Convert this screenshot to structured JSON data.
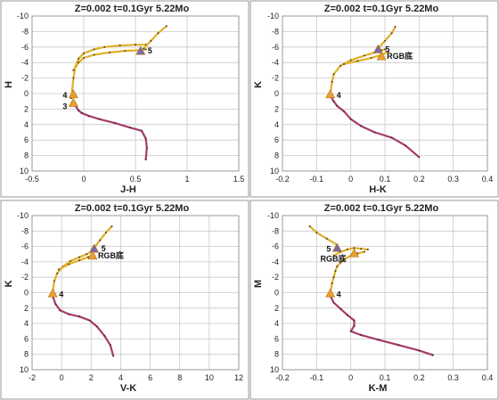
{
  "chart_data": [
    {
      "type": "line",
      "title": "Z=0.002  t=0.1Gyr 5.22Mo",
      "xlabel": "J-H",
      "ylabel": "H",
      "xlim": [
        -0.5,
        1.5
      ],
      "ylim": [
        10,
        -10
      ],
      "xticks": [
        "-0.5",
        "0",
        "0.5",
        "1",
        "1.5"
      ],
      "yticks": [
        "-10",
        "-8",
        "-6",
        "-4",
        "-2",
        "0",
        "2",
        "4",
        "6",
        "8",
        "10"
      ],
      "grid": true,
      "series": [
        {
          "color": "#a83a6a",
          "x": [
            0.6,
            0.61,
            0.6,
            0.56,
            0.45,
            0.3,
            0.15,
            0.05,
            -0.02,
            -0.05,
            -0.1
          ],
          "y": [
            8.5,
            7,
            5.8,
            4.8,
            4.4,
            3.8,
            3.3,
            2.9,
            2.5,
            2.2,
            1.2
          ]
        },
        {
          "color": "#e0b02a",
          "x": [
            -0.12,
            -0.1,
            -0.08,
            -0.05,
            0,
            0.1,
            0.2,
            0.35,
            0.5,
            0.6
          ],
          "y": [
            0.6,
            -2,
            -3.5,
            -4.5,
            -5.2,
            -5.7,
            -6,
            -6.2,
            -6.3,
            -6.3
          ]
        },
        {
          "color": "#e0b02a",
          "x": [
            -0.1,
            -0.05,
            0,
            0.1,
            0.25,
            0.4,
            0.55,
            0.6
          ],
          "y": [
            -3,
            -4,
            -4.6,
            -5,
            -5.3,
            -5.5,
            -5.6,
            -5.7
          ]
        },
        {
          "color": "#e0b02a",
          "x": [
            0.58,
            0.65,
            0.72,
            0.8
          ],
          "y": [
            -5.8,
            -6.8,
            -7.8,
            -8.7
          ]
        }
      ],
      "markers": [
        {
          "label": "5",
          "x": 0.55,
          "y": -5.5,
          "color": "#7a6aa8"
        },
        {
          "label": "4",
          "x": -0.1,
          "y": 0.1,
          "color": "#e8a030"
        },
        {
          "label": "3",
          "x": -0.1,
          "y": 1.2,
          "color": "#e8a030"
        }
      ]
    },
    {
      "type": "line",
      "title": "Z=0.002  t=0.1Gyr 5.22Mo",
      "xlabel": "H-K",
      "ylabel": "K",
      "xlim": [
        -0.2,
        0.4
      ],
      "ylim": [
        10,
        -10
      ],
      "xticks": [
        "-0.2",
        "-0.1",
        "0",
        "0.1",
        "0.2",
        "0.3",
        "0.4"
      ],
      "yticks": [
        "-10",
        "-8",
        "-6",
        "-4",
        "-2",
        "0",
        "2",
        "4",
        "6",
        "8",
        "10"
      ],
      "grid": true,
      "series": [
        {
          "color": "#a83a6a",
          "x": [
            -0.06,
            -0.05,
            -0.04,
            -0.02,
            0,
            0.03,
            0.07,
            0.12,
            0.16,
            0.2
          ],
          "y": [
            0.3,
            1,
            1.6,
            2.3,
            3.3,
            4.2,
            5,
            5.7,
            6.7,
            8.2
          ]
        },
        {
          "color": "#e0b02a",
          "x": [
            -0.06,
            -0.055,
            -0.05,
            -0.03,
            0,
            0.04,
            0.07,
            0.09,
            0.1
          ],
          "y": [
            0,
            -1.5,
            -2.5,
            -3.6,
            -4.3,
            -4.9,
            -5.3,
            -5.6,
            -5.7
          ]
        },
        {
          "color": "#e0b02a",
          "x": [
            -0.02,
            0.02,
            0.06,
            0.09,
            0.11
          ],
          "y": [
            -3.8,
            -4.2,
            -4.6,
            -5,
            -5.4
          ]
        },
        {
          "color": "#e0b02a",
          "x": [
            0.08,
            0.1,
            0.12,
            0.13
          ],
          "y": [
            -5.8,
            -6.8,
            -7.8,
            -8.6
          ]
        }
      ],
      "markers": [
        {
          "label": "5",
          "x": 0.08,
          "y": -5.7,
          "color": "#7a6aa8"
        },
        {
          "label": "RGB底",
          "x": 0.09,
          "y": -4.8,
          "color": "#e8a030"
        },
        {
          "label": "4",
          "x": -0.06,
          "y": 0.1,
          "color": "#e8a030"
        }
      ]
    },
    {
      "type": "line",
      "title": "Z=0.002  t=0.1Gyr 5.22Mo",
      "xlabel": "V-K",
      "ylabel": "K",
      "xlim": [
        -2,
        12
      ],
      "ylim": [
        10,
        -10
      ],
      "xticks": [
        "-2",
        "0",
        "2",
        "4",
        "6",
        "8",
        "10",
        "12"
      ],
      "yticks": [
        "-10",
        "-8",
        "-6",
        "-4",
        "-2",
        "0",
        "2",
        "4",
        "6",
        "8",
        "10"
      ],
      "grid": true,
      "series": [
        {
          "color": "#a83a6a",
          "x": [
            -0.6,
            -0.4,
            -0.1,
            0.5,
            1.2,
            1.9,
            2.4,
            2.9,
            3.3,
            3.5
          ],
          "y": [
            0.5,
            1.5,
            2.3,
            2.8,
            3.1,
            3.6,
            4.4,
            5.6,
            6.8,
            8.2
          ]
        },
        {
          "color": "#e0b02a",
          "x": [
            -0.6,
            -0.5,
            -0.3,
            0.1,
            0.6,
            1.2,
            1.7,
            2,
            2.1
          ],
          "y": [
            0,
            -1.5,
            -2.5,
            -3.4,
            -4.1,
            -4.6,
            -5,
            -5.3,
            -5.5
          ]
        },
        {
          "color": "#e0b02a",
          "x": [
            -0.2,
            0.5,
            1.2,
            1.8,
            2.2
          ],
          "y": [
            -3,
            -3.7,
            -4.2,
            -4.6,
            -4.9
          ]
        },
        {
          "color": "#e0b02a",
          "x": [
            2.2,
            2.6,
            3,
            3.4
          ],
          "y": [
            -5.8,
            -6.8,
            -7.8,
            -8.6
          ]
        }
      ],
      "markers": [
        {
          "label": "5",
          "x": 2.2,
          "y": -5.7,
          "color": "#7a6aa8"
        },
        {
          "label": "RGB底",
          "x": 2.1,
          "y": -4.8,
          "color": "#e8a030"
        },
        {
          "label": "4",
          "x": -0.6,
          "y": 0.1,
          "color": "#e8a030"
        }
      ]
    },
    {
      "type": "line",
      "title": "Z=0.002  t=0.1Gyr 5.22Mo",
      "xlabel": "K-M",
      "ylabel": "M",
      "xlim": [
        -0.2,
        0.4
      ],
      "ylim": [
        10,
        -10
      ],
      "xticks": [
        "-0.2",
        "-0.1",
        "0",
        "0.1",
        "0.2",
        "0.3",
        "0.4"
      ],
      "yticks": [
        "-10",
        "-8",
        "-6",
        "-4",
        "-2",
        "0",
        "2",
        "4",
        "6",
        "8",
        "10"
      ],
      "grid": true,
      "series": [
        {
          "color": "#a83a6a",
          "x": [
            -0.06,
            -0.05,
            -0.03,
            -0.01,
            0.01,
            0.01,
            0,
            0.03,
            0.08,
            0.14,
            0.2,
            0.24
          ],
          "y": [
            0.4,
            1.3,
            2.1,
            2.9,
            3.6,
            4.3,
            5,
            5.5,
            6.1,
            6.8,
            7.5,
            8.1
          ]
        },
        {
          "color": "#e0b02a",
          "x": [
            -0.06,
            -0.055,
            -0.05,
            -0.045,
            -0.04,
            -0.03,
            -0.02,
            0,
            0.02,
            0.04
          ],
          "y": [
            0,
            -1.2,
            -2,
            -2.8,
            -3.4,
            -3.9,
            -4.3,
            -4.8,
            -5.1,
            -5.3
          ]
        },
        {
          "color": "#e0b02a",
          "x": [
            -0.05,
            -0.03,
            -0.01,
            0.01,
            0.03,
            0.05
          ],
          "y": [
            -4.8,
            -5.3,
            -5.6,
            -5.8,
            -5.7,
            -5.6
          ]
        },
        {
          "color": "#e0b02a",
          "x": [
            -0.04,
            -0.07,
            -0.1,
            -0.12
          ],
          "y": [
            -6.2,
            -7,
            -7.8,
            -8.6
          ]
        }
      ],
      "markers": [
        {
          "label": "5",
          "x": -0.04,
          "y": -5.8,
          "color": "#7a6aa8"
        },
        {
          "label": "RGB底",
          "x": 0.01,
          "y": -5.1,
          "color": "#e8a030"
        },
        {
          "label": "4",
          "x": -0.06,
          "y": 0.1,
          "color": "#e8a030"
        }
      ]
    }
  ]
}
